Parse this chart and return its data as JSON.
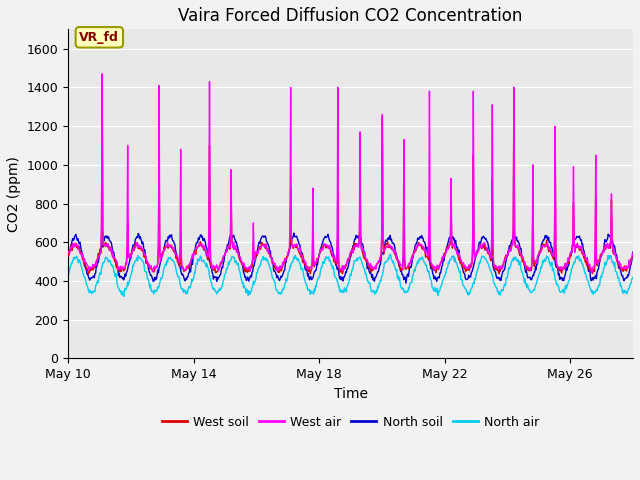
{
  "title": "Vaira Forced Diffusion CO2 Concentration",
  "xlabel": "Time",
  "ylabel": "CO2 (ppm)",
  "ylim": [
    0,
    1700
  ],
  "yticks": [
    0,
    200,
    400,
    600,
    800,
    1000,
    1200,
    1400,
    1600
  ],
  "x_tick_labels": [
    "May 10",
    "May 14",
    "May 18",
    "May 22",
    "May 26"
  ],
  "x_tick_positions": [
    0,
    4,
    8,
    12,
    16
  ],
  "n_days": 18,
  "colors": {
    "west_soil": "#dd0000",
    "west_air": "#ff00ff",
    "north_soil": "#0000cc",
    "north_air": "#00ccee"
  },
  "legend_labels": [
    "West soil",
    "West air",
    "North soil",
    "North air"
  ],
  "annotation_text": "VR_fd",
  "annotation_color": "#880000",
  "annotation_bg": "#ffffbb",
  "annotation_edge": "#999900",
  "plot_bg": "#e8e8e8",
  "fig_bg": "#f2f2f2",
  "grid_color": "#ffffff",
  "title_fontsize": 12,
  "label_fontsize": 10,
  "tick_fontsize": 9,
  "legend_fontsize": 9
}
